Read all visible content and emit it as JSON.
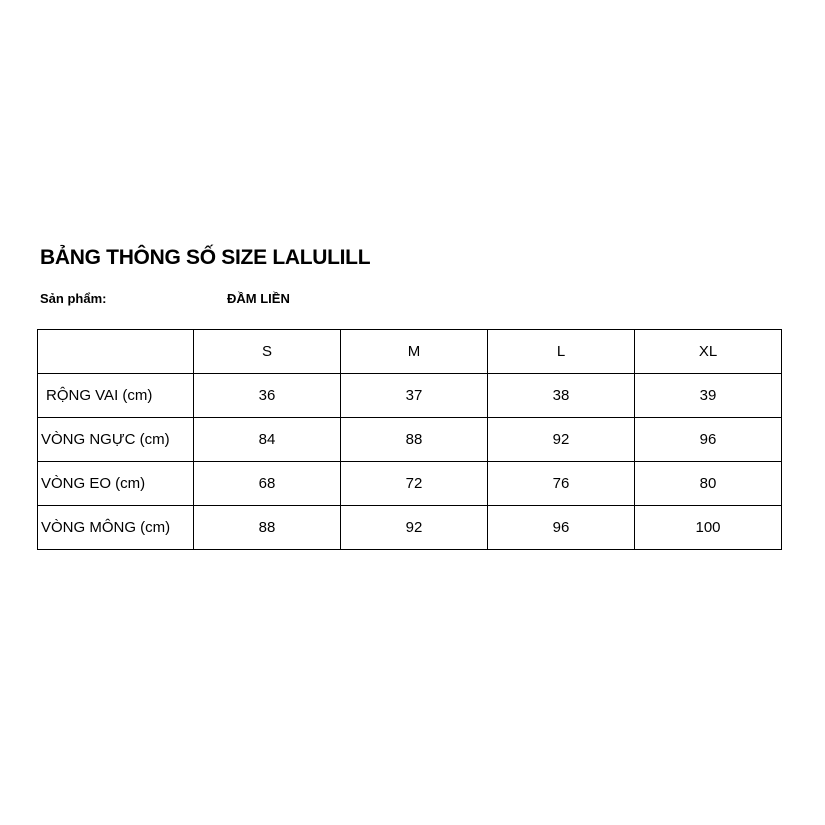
{
  "title": "BẢNG THÔNG SỐ SIZE LALULILL",
  "product_label": "Sản phẩm:",
  "product_value": "ĐẦM LIỀN",
  "table": {
    "headers": [
      "",
      "S",
      "M",
      "L",
      "XL"
    ],
    "rows": [
      [
        "RỘNG VAI (cm)",
        "36",
        "37",
        "38",
        "39"
      ],
      [
        "VÒNG NGỰC (cm)",
        "84",
        "88",
        "92",
        "96"
      ],
      [
        "VÒNG EO (cm)",
        "68",
        "72",
        "76",
        "80"
      ],
      [
        "VÒNG MÔNG (cm)",
        "88",
        "92",
        "96",
        "100"
      ]
    ]
  }
}
